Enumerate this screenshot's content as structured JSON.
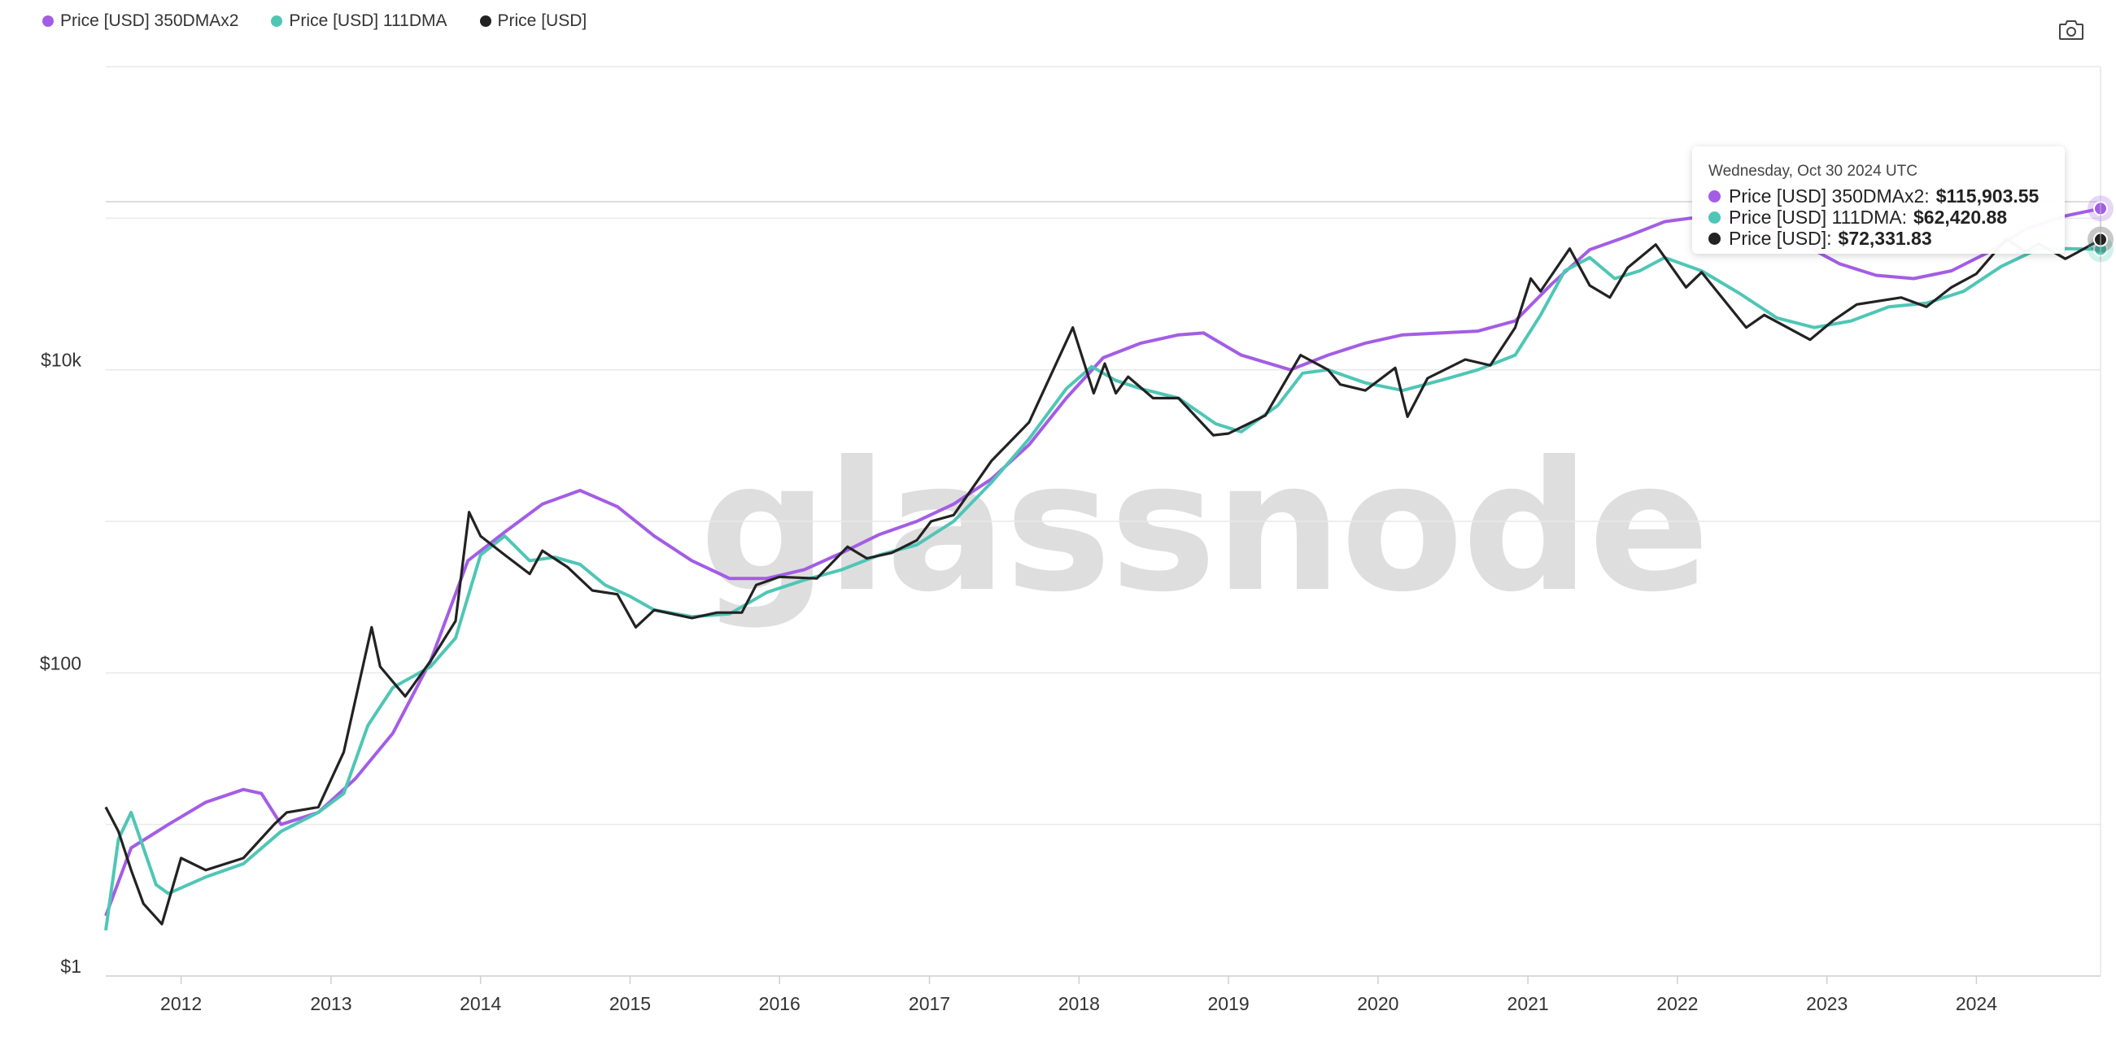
{
  "legend": [
    {
      "label": "Price [USD] 350DMAx2",
      "color": "#A35DE5"
    },
    {
      "label": "Price [USD] 111DMA",
      "color": "#4FC6B5"
    },
    {
      "label": "Price [USD]",
      "color": "#222222"
    }
  ],
  "toolbar": {
    "camera_icon": "camera-icon"
  },
  "watermark": "glassnode",
  "tooltip": {
    "date": "Wednesday, Oct 30 2024 UTC",
    "rows": [
      {
        "label": "Price [USD] 350DMAx2:",
        "value": "$115,903.55",
        "color": "#A35DE5"
      },
      {
        "label": "Price [USD] 111DMA:",
        "value": "$62,420.88",
        "color": "#4FC6B5"
      },
      {
        "label": "Price [USD]:",
        "value": "$72,331.83",
        "color": "#222222"
      }
    ]
  },
  "chart_data": {
    "type": "line",
    "title": "",
    "xlabel": "",
    "ylabel": "",
    "yscale": "log",
    "ylim": [
      1,
      1000000
    ],
    "yticks": [
      {
        "value": 1,
        "label": "$1"
      },
      {
        "value": 100,
        "label": "$100"
      },
      {
        "value": 10000,
        "label": "$10k"
      }
    ],
    "xticks": [
      "2012",
      "2013",
      "2014",
      "2015",
      "2016",
      "2017",
      "2018",
      "2019",
      "2020",
      "2021",
      "2022",
      "2023",
      "2024"
    ],
    "xlim": [
      "2011-07-01",
      "2024-10-30"
    ],
    "grid": true,
    "legend_position": "top-left",
    "series": [
      {
        "name": "Price [USD] 350DMAx2",
        "color": "#A35DE5",
        "points": [
          [
            "2011-07-01",
            2.5
          ],
          [
            "2011-09-01",
            7
          ],
          [
            "2011-12-01",
            10
          ],
          [
            "2012-03-01",
            14
          ],
          [
            "2012-06-01",
            17
          ],
          [
            "2012-07-15",
            16
          ],
          [
            "2012-09-01",
            10
          ],
          [
            "2012-12-01",
            12
          ],
          [
            "2013-03-01",
            20
          ],
          [
            "2013-06-01",
            40
          ],
          [
            "2013-09-01",
            120
          ],
          [
            "2013-12-01",
            550
          ],
          [
            "2014-03-01",
            850
          ],
          [
            "2014-06-01",
            1300
          ],
          [
            "2014-09-01",
            1600
          ],
          [
            "2014-12-01",
            1250
          ],
          [
            "2015-03-01",
            800
          ],
          [
            "2015-06-01",
            550
          ],
          [
            "2015-09-01",
            420
          ],
          [
            "2015-12-01",
            420
          ],
          [
            "2016-03-01",
            480
          ],
          [
            "2016-06-01",
            620
          ],
          [
            "2016-09-01",
            820
          ],
          [
            "2016-12-01",
            1000
          ],
          [
            "2017-03-01",
            1300
          ],
          [
            "2017-06-01",
            1900
          ],
          [
            "2017-09-01",
            3200
          ],
          [
            "2017-12-01",
            6500
          ],
          [
            "2018-03-01",
            12000
          ],
          [
            "2018-06-01",
            15000
          ],
          [
            "2018-09-01",
            17000
          ],
          [
            "2018-11-01",
            17500
          ],
          [
            "2019-02-01",
            12500
          ],
          [
            "2019-06-01",
            10000
          ],
          [
            "2019-09-01",
            12500
          ],
          [
            "2019-12-01",
            15000
          ],
          [
            "2020-03-01",
            17000
          ],
          [
            "2020-06-01",
            17500
          ],
          [
            "2020-09-01",
            18000
          ],
          [
            "2020-12-01",
            21000
          ],
          [
            "2021-03-01",
            37000
          ],
          [
            "2021-06-01",
            62000
          ],
          [
            "2021-09-01",
            76000
          ],
          [
            "2021-12-01",
            95000
          ],
          [
            "2022-02-01",
            100000
          ],
          [
            "2022-05-01",
            100000
          ],
          [
            "2022-08-01",
            88000
          ],
          [
            "2022-11-01",
            68000
          ],
          [
            "2023-02-01",
            50000
          ],
          [
            "2023-05-01",
            42000
          ],
          [
            "2023-08-01",
            40000
          ],
          [
            "2023-11-01",
            45000
          ],
          [
            "2024-02-01",
            60000
          ],
          [
            "2024-05-01",
            85000
          ],
          [
            "2024-08-01",
            103000
          ],
          [
            "2024-10-30",
            115903.55
          ]
        ]
      },
      {
        "name": "Price [USD] 111DMA",
        "color": "#4FC6B5",
        "points": [
          [
            "2011-07-01",
            2.0
          ],
          [
            "2011-08-01",
            8
          ],
          [
            "2011-09-01",
            12
          ],
          [
            "2011-10-01",
            7
          ],
          [
            "2011-11-01",
            4
          ],
          [
            "2011-12-01",
            3.5
          ],
          [
            "2012-03-01",
            4.5
          ],
          [
            "2012-06-01",
            5.5
          ],
          [
            "2012-09-01",
            9
          ],
          [
            "2012-12-01",
            12
          ],
          [
            "2013-02-01",
            16
          ],
          [
            "2013-04-01",
            45
          ],
          [
            "2013-06-01",
            80
          ],
          [
            "2013-09-01",
            110
          ],
          [
            "2013-11-01",
            170
          ],
          [
            "2014-01-01",
            600
          ],
          [
            "2014-03-01",
            800
          ],
          [
            "2014-05-01",
            550
          ],
          [
            "2014-07-01",
            580
          ],
          [
            "2014-09-01",
            520
          ],
          [
            "2014-11-01",
            380
          ],
          [
            "2015-01-01",
            320
          ],
          [
            "2015-03-01",
            260
          ],
          [
            "2015-06-01",
            235
          ],
          [
            "2015-09-01",
            245
          ],
          [
            "2015-12-01",
            340
          ],
          [
            "2016-03-01",
            410
          ],
          [
            "2016-06-01",
            480
          ],
          [
            "2016-09-01",
            600
          ],
          [
            "2016-12-01",
            700
          ],
          [
            "2017-03-01",
            1000
          ],
          [
            "2017-06-01",
            1800
          ],
          [
            "2017-09-01",
            3500
          ],
          [
            "2017-12-01",
            7500
          ],
          [
            "2018-02-01",
            10500
          ],
          [
            "2018-04-01",
            8500
          ],
          [
            "2018-06-01",
            7500
          ],
          [
            "2018-09-01",
            6500
          ],
          [
            "2018-12-01",
            4400
          ],
          [
            "2019-02-01",
            3900
          ],
          [
            "2019-05-01",
            5800
          ],
          [
            "2019-07-01",
            9500
          ],
          [
            "2019-09-01",
            10000
          ],
          [
            "2019-12-01",
            8200
          ],
          [
            "2020-03-01",
            7300
          ],
          [
            "2020-06-01",
            8500
          ],
          [
            "2020-09-01",
            10000
          ],
          [
            "2020-12-01",
            12500
          ],
          [
            "2021-02-01",
            23000
          ],
          [
            "2021-04-01",
            45000
          ],
          [
            "2021-06-01",
            55000
          ],
          [
            "2021-08-01",
            40000
          ],
          [
            "2021-10-01",
            45000
          ],
          [
            "2021-12-01",
            55000
          ],
          [
            "2022-03-01",
            45000
          ],
          [
            "2022-06-01",
            32000
          ],
          [
            "2022-09-01",
            22000
          ],
          [
            "2022-12-01",
            19000
          ],
          [
            "2023-03-01",
            21000
          ],
          [
            "2023-06-01",
            26000
          ],
          [
            "2023-09-01",
            27500
          ],
          [
            "2023-12-01",
            33000
          ],
          [
            "2024-03-01",
            48000
          ],
          [
            "2024-06-01",
            63000
          ],
          [
            "2024-08-01",
            63000
          ],
          [
            "2024-10-30",
            62420.88
          ]
        ]
      },
      {
        "name": "Price [USD]",
        "color": "#222222",
        "points": [
          [
            "2011-07-01",
            13
          ],
          [
            "2011-08-01",
            9
          ],
          [
            "2011-09-01",
            5
          ],
          [
            "2011-10-01",
            3
          ],
          [
            "2011-11-15",
            2.2
          ],
          [
            "2012-01-01",
            6
          ],
          [
            "2012-03-01",
            5
          ],
          [
            "2012-06-01",
            6
          ],
          [
            "2012-08-15",
            10
          ],
          [
            "2012-09-15",
            12
          ],
          [
            "2012-12-01",
            13
          ],
          [
            "2013-02-01",
            30
          ],
          [
            "2013-04-10",
            200
          ],
          [
            "2013-05-01",
            110
          ],
          [
            "2013-07-01",
            70
          ],
          [
            "2013-09-01",
            120
          ],
          [
            "2013-11-01",
            220
          ],
          [
            "2013-12-04",
            1150
          ],
          [
            "2014-01-01",
            800
          ],
          [
            "2014-03-01",
            600
          ],
          [
            "2014-05-01",
            450
          ],
          [
            "2014-06-01",
            640
          ],
          [
            "2014-08-01",
            500
          ],
          [
            "2014-10-01",
            350
          ],
          [
            "2014-12-01",
            330
          ],
          [
            "2015-01-15",
            200
          ],
          [
            "2015-03-01",
            260
          ],
          [
            "2015-06-01",
            230
          ],
          [
            "2015-08-01",
            250
          ],
          [
            "2015-10-01",
            250
          ],
          [
            "2015-11-05",
            380
          ],
          [
            "2016-01-01",
            430
          ],
          [
            "2016-04-01",
            420
          ],
          [
            "2016-06-15",
            680
          ],
          [
            "2016-08-01",
            570
          ],
          [
            "2016-10-01",
            620
          ],
          [
            "2016-12-01",
            750
          ],
          [
            "2017-01-05",
            1000
          ],
          [
            "2017-03-01",
            1100
          ],
          [
            "2017-06-01",
            2500
          ],
          [
            "2017-09-01",
            4500
          ],
          [
            "2017-12-17",
            19000
          ],
          [
            "2018-02-06",
            7000
          ],
          [
            "2018-03-05",
            11000
          ],
          [
            "2018-04-01",
            7000
          ],
          [
            "2018-05-01",
            9000
          ],
          [
            "2018-07-01",
            6500
          ],
          [
            "2018-09-01",
            6500
          ],
          [
            "2018-11-25",
            3700
          ],
          [
            "2019-01-01",
            3800
          ],
          [
            "2019-04-01",
            5000
          ],
          [
            "2019-06-26",
            12500
          ],
          [
            "2019-09-01",
            10000
          ],
          [
            "2019-10-01",
            8000
          ],
          [
            "2019-12-01",
            7300
          ],
          [
            "2020-02-12",
            10300
          ],
          [
            "2020-03-13",
            4900
          ],
          [
            "2020-05-01",
            8800
          ],
          [
            "2020-08-01",
            11700
          ],
          [
            "2020-10-01",
            10700
          ],
          [
            "2020-12-01",
            19000
          ],
          [
            "2021-01-08",
            40000
          ],
          [
            "2021-02-01",
            33000
          ],
          [
            "2021-04-13",
            63000
          ],
          [
            "2021-06-01",
            36000
          ],
          [
            "2021-07-20",
            30000
          ],
          [
            "2021-09-01",
            47000
          ],
          [
            "2021-11-09",
            67000
          ],
          [
            "2022-01-22",
            35000
          ],
          [
            "2022-03-01",
            44000
          ],
          [
            "2022-06-18",
            19000
          ],
          [
            "2022-08-01",
            23000
          ],
          [
            "2022-11-21",
            15800
          ],
          [
            "2023-01-15",
            21000
          ],
          [
            "2023-03-15",
            27000
          ],
          [
            "2023-07-01",
            30000
          ],
          [
            "2023-09-01",
            26000
          ],
          [
            "2023-11-01",
            35000
          ],
          [
            "2024-01-01",
            43000
          ],
          [
            "2024-03-14",
            73000
          ],
          [
            "2024-05-01",
            60000
          ],
          [
            "2024-06-01",
            68000
          ],
          [
            "2024-08-05",
            54000
          ],
          [
            "2024-09-01",
            59000
          ],
          [
            "2024-10-30",
            72331.83
          ]
        ]
      }
    ]
  }
}
